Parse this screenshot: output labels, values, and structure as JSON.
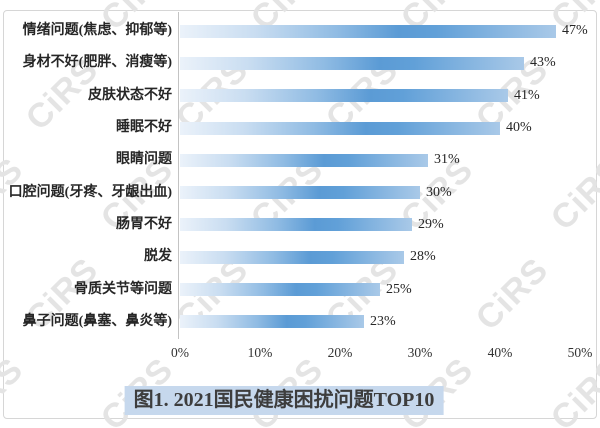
{
  "watermark": {
    "text": "CiRS"
  },
  "colors": {
    "bar_light": "#ebf2fa",
    "bar_dark": "#5b9bd5",
    "bar_tip": "#a9c9e8",
    "title_highlight": "#c6d8ed",
    "axis_line": "#c3c3c3",
    "watermark": "#e4e4e4",
    "text": "#262626"
  },
  "chart_data": {
    "type": "bar",
    "orientation": "horizontal",
    "title": "图1. 2021国民健康困扰问题TOP10",
    "categories": [
      "情绪问题(焦虑、抑郁等)",
      "身材不好(肥胖、消瘦等)",
      "皮肤状态不好",
      "睡眠不好",
      "眼睛问题",
      "口腔问题(牙疼、牙龈出血)",
      "肠胃不好",
      "脱发",
      "骨质关节等问题",
      "鼻子问题(鼻塞、鼻炎等)"
    ],
    "values": [
      47,
      43,
      41,
      40,
      31,
      30,
      29,
      28,
      25,
      23
    ],
    "value_labels": [
      "47%",
      "43%",
      "41%",
      "40%",
      "31%",
      "30%",
      "29%",
      "28%",
      "25%",
      "23%"
    ],
    "x_ticks": [
      "0%",
      "10%",
      "20%",
      "30%",
      "40%",
      "50%"
    ],
    "xlim": [
      0,
      50
    ],
    "xlabel": "",
    "ylabel": "",
    "grid": "off",
    "legend": "none"
  }
}
